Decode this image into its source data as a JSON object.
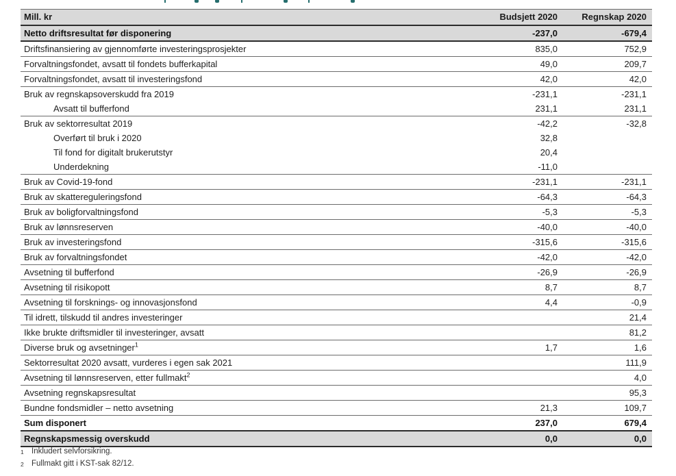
{
  "colors": {
    "shade_gray": "#d9d9d9",
    "border_normal": "#6b6b6b",
    "border_strong": "#2b2b2b",
    "heading_teal": "#266e6e"
  },
  "table": {
    "columns": [
      "Mill. kr",
      "Budsjett 2020",
      "Regnskap 2020"
    ],
    "rows": [
      {
        "label": "Netto driftsresultat før disponering",
        "budsjett": "-237,0",
        "regnskap": "-679,4",
        "bold": true,
        "shaded": true,
        "border": "strong"
      },
      {
        "label": "Driftsfinansiering av gjennomførte investeringsprosjekter",
        "budsjett": "835,0",
        "regnskap": "752,9",
        "border": "normal"
      },
      {
        "label": "Forvaltningsfondet, avsatt til fondets bufferkapital",
        "budsjett": "49,0",
        "regnskap": "209,7",
        "border": "normal"
      },
      {
        "label": "Forvaltningsfondet, avsatt til investeringsfond",
        "budsjett": "42,0",
        "regnskap": "42,0",
        "border": "normal"
      },
      {
        "label": "Bruk av regnskapsoverskudd fra 2019",
        "budsjett": "-231,1",
        "regnskap": "-231,1",
        "border": "none"
      },
      {
        "label": "Avsatt til bufferfond",
        "budsjett": "231,1",
        "regnskap": "231,1",
        "indent": true,
        "border": "normal"
      },
      {
        "label": "Bruk av sektorresultat 2019",
        "budsjett": "-42,2",
        "regnskap": "-32,8",
        "border": "none"
      },
      {
        "label": "Overført til bruk i 2020",
        "budsjett": "32,8",
        "regnskap": "",
        "indent": true,
        "border": "none"
      },
      {
        "label": "Til fond for digitalt brukerutstyr",
        "budsjett": "20,4",
        "regnskap": "",
        "indent": true,
        "border": "none"
      },
      {
        "label": "Underdekning",
        "budsjett": "-11,0",
        "regnskap": "",
        "indent": true,
        "border": "normal"
      },
      {
        "label": "Bruk av Covid-19-fond",
        "budsjett": "-231,1",
        "regnskap": "-231,1",
        "border": "normal"
      },
      {
        "label": "Bruk av skattereguleringsfond",
        "budsjett": "-64,3",
        "regnskap": "-64,3",
        "border": "normal"
      },
      {
        "label": "Bruk av boligforvaltningsfond",
        "budsjett": "-5,3",
        "regnskap": "-5,3",
        "border": "normal"
      },
      {
        "label": "Bruk av lønnsreserven",
        "budsjett": "-40,0",
        "regnskap": "-40,0",
        "border": "normal"
      },
      {
        "label": "Bruk av investeringsfond",
        "budsjett": "-315,6",
        "regnskap": "-315,6",
        "border": "normal"
      },
      {
        "label": "Bruk av forvaltningsfondet",
        "budsjett": "-42,0",
        "regnskap": "-42,0",
        "border": "normal"
      },
      {
        "label": "Avsetning til bufferfond",
        "budsjett": "-26,9",
        "regnskap": "-26,9",
        "border": "normal"
      },
      {
        "label": "Avsetning til risikopott",
        "budsjett": "8,7",
        "regnskap": "8,7",
        "border": "normal"
      },
      {
        "label": "Avsetning til forsknings- og innovasjonsfond",
        "budsjett": "4,4",
        "regnskap": "-0,9",
        "border": "normal"
      },
      {
        "label": "Til idrett, tilskudd til andres investeringer",
        "budsjett": "",
        "regnskap": "21,4",
        "border": "normal"
      },
      {
        "label": "Ikke brukte driftsmidler til investeringer, avsatt",
        "budsjett": "",
        "regnskap": "81,2",
        "border": "normal"
      },
      {
        "label": "Diverse bruk og avsetninger",
        "sup": "1",
        "budsjett": "1,7",
        "regnskap": "1,6",
        "border": "normal"
      },
      {
        "label": "Sektorresultat 2020 avsatt, vurderes i egen sak 2021",
        "budsjett": "",
        "regnskap": "111,9",
        "border": "normal"
      },
      {
        "label": "Avsetning til lønnsreserven, etter fullmakt",
        "sup": "2",
        "budsjett": "",
        "regnskap": "4,0",
        "border": "normal"
      },
      {
        "label": "Avsetning regnskapsresultat",
        "budsjett": "",
        "regnskap": "95,3",
        "border": "normal"
      },
      {
        "label": "Bundne fondsmidler – netto avsetning",
        "budsjett": "21,3",
        "regnskap": "109,7",
        "border": "normal"
      },
      {
        "label": "Sum disponert",
        "budsjett": "237,0",
        "regnskap": "679,4",
        "bold": true,
        "border": "strong"
      },
      {
        "label": "Regnskapsmessig overskudd",
        "budsjett": "0,0",
        "regnskap": "0,0",
        "bold": true,
        "shaded": true,
        "border": "strong"
      }
    ]
  },
  "footnotes": [
    {
      "sup": "1",
      "text": "Inkludert selvforsikring."
    },
    {
      "sup": "2",
      "text": "Fullmakt gitt i KST-sak 82/12."
    }
  ]
}
